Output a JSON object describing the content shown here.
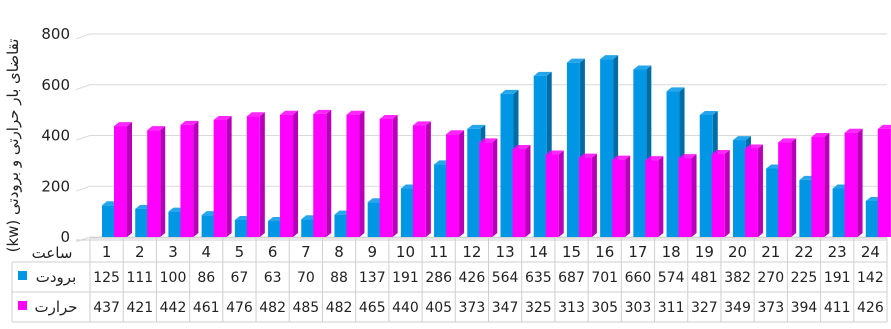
{
  "chart_data": {
    "type": "bar",
    "ylabel": "تقاضای بار حرارتی و برودتی (kw)",
    "category_label": "ساعت",
    "categories": [
      "1",
      "2",
      "3",
      "4",
      "5",
      "6",
      "7",
      "8",
      "9",
      "10",
      "11",
      "12",
      "13",
      "14",
      "15",
      "16",
      "17",
      "18",
      "19",
      "20",
      "21",
      "22",
      "23",
      "24"
    ],
    "ylim": [
      0,
      800
    ],
    "yticks": [
      0,
      200,
      400,
      600,
      800
    ],
    "grid": true,
    "series": [
      {
        "name": "برودت",
        "color": "#0096e6",
        "values": [
          125,
          111,
          100,
          86,
          67,
          63,
          70,
          88,
          137,
          191,
          286,
          426,
          564,
          635,
          687,
          701,
          660,
          574,
          481,
          382,
          270,
          225,
          191,
          142
        ]
      },
      {
        "name": "حرارت",
        "color": "#ff00ff",
        "values": [
          437,
          421,
          442,
          461,
          476,
          482,
          485,
          482,
          465,
          440,
          405,
          373,
          347,
          325,
          313,
          305,
          303,
          311,
          327,
          349,
          373,
          394,
          411,
          426
        ]
      }
    ],
    "data_table": true
  }
}
